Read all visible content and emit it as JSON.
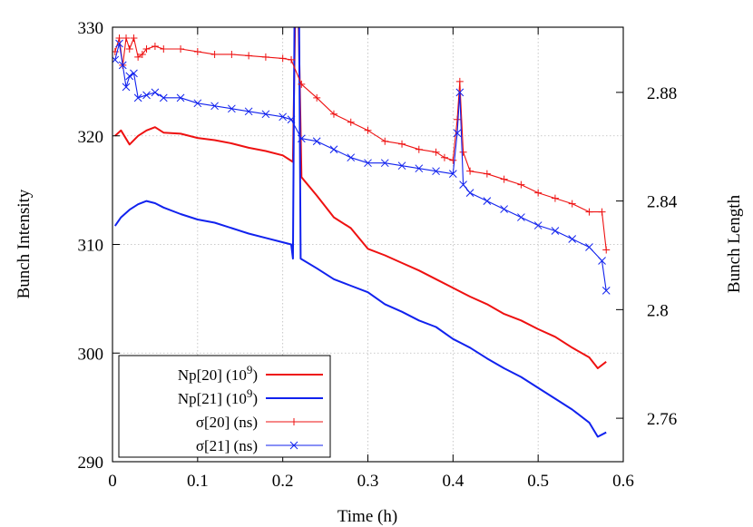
{
  "chart_data": {
    "type": "line",
    "xlabel": "Time (h)",
    "ylabel": "Bunch Intensity",
    "y2label": "Bunch Length",
    "xlim": [
      0,
      0.6
    ],
    "ylim": [
      290,
      330
    ],
    "y2lim": [
      2.744,
      2.904
    ],
    "xticks": [
      "0",
      "0.1",
      "0.2",
      "0.3",
      "0.4",
      "0.5",
      "0.6"
    ],
    "yticks": [
      "290",
      "300",
      "310",
      "320",
      "330"
    ],
    "y2ticks": [
      "2.76",
      "2.8",
      "2.84",
      "2.88"
    ],
    "grid": true,
    "legend_position": "bottom-left",
    "series": [
      {
        "name": "Np[20] (10",
        "name_superscript": "9",
        "name_suffix": ")",
        "axis": "left",
        "color": "#ee1111",
        "marker": "none",
        "points": [
          [
            0.003,
            320.0
          ],
          [
            0.01,
            320.5
          ],
          [
            0.02,
            319.2
          ],
          [
            0.03,
            320.0
          ],
          [
            0.04,
            320.5
          ],
          [
            0.05,
            320.8
          ],
          [
            0.06,
            320.3
          ],
          [
            0.08,
            320.2
          ],
          [
            0.1,
            319.8
          ],
          [
            0.12,
            319.6
          ],
          [
            0.14,
            319.3
          ],
          [
            0.16,
            318.9
          ],
          [
            0.18,
            318.6
          ],
          [
            0.2,
            318.2
          ],
          [
            0.212,
            317.6
          ],
          [
            0.215,
            333.0
          ],
          [
            0.218,
            333.0
          ],
          [
            0.222,
            316.2
          ],
          [
            0.24,
            314.5
          ],
          [
            0.26,
            312.5
          ],
          [
            0.28,
            311.5
          ],
          [
            0.3,
            309.6
          ],
          [
            0.32,
            309.0
          ],
          [
            0.34,
            308.3
          ],
          [
            0.36,
            307.6
          ],
          [
            0.38,
            306.8
          ],
          [
            0.4,
            306.0
          ],
          [
            0.42,
            305.2
          ],
          [
            0.44,
            304.5
          ],
          [
            0.46,
            303.6
          ],
          [
            0.48,
            303.0
          ],
          [
            0.5,
            302.2
          ],
          [
            0.52,
            301.5
          ],
          [
            0.54,
            300.5
          ],
          [
            0.56,
            299.6
          ],
          [
            0.57,
            298.6
          ],
          [
            0.58,
            299.2
          ]
        ]
      },
      {
        "name": "Np[21] (10",
        "name_superscript": "9",
        "name_suffix": ")",
        "axis": "left",
        "color": "#1122ee",
        "marker": "none",
        "points": [
          [
            0.003,
            311.7
          ],
          [
            0.01,
            312.5
          ],
          [
            0.02,
            313.2
          ],
          [
            0.03,
            313.7
          ],
          [
            0.04,
            314.0
          ],
          [
            0.05,
            313.8
          ],
          [
            0.06,
            313.4
          ],
          [
            0.08,
            312.8
          ],
          [
            0.1,
            312.3
          ],
          [
            0.12,
            312.0
          ],
          [
            0.14,
            311.5
          ],
          [
            0.16,
            311.0
          ],
          [
            0.18,
            310.6
          ],
          [
            0.2,
            310.2
          ],
          [
            0.21,
            310.0
          ],
          [
            0.212,
            308.7
          ],
          [
            0.214,
            333.0
          ],
          [
            0.219,
            333.0
          ],
          [
            0.221,
            308.7
          ],
          [
            0.24,
            307.8
          ],
          [
            0.26,
            306.8
          ],
          [
            0.28,
            306.2
          ],
          [
            0.3,
            305.6
          ],
          [
            0.32,
            304.5
          ],
          [
            0.34,
            303.8
          ],
          [
            0.36,
            303.0
          ],
          [
            0.38,
            302.4
          ],
          [
            0.4,
            301.3
          ],
          [
            0.42,
            300.5
          ],
          [
            0.44,
            299.5
          ],
          [
            0.46,
            298.6
          ],
          [
            0.48,
            297.8
          ],
          [
            0.5,
            296.8
          ],
          [
            0.52,
            295.8
          ],
          [
            0.54,
            294.8
          ],
          [
            0.56,
            293.6
          ],
          [
            0.57,
            292.3
          ],
          [
            0.58,
            292.7
          ]
        ]
      },
      {
        "name": "σ[20] (ns)",
        "axis": "right",
        "color": "#ee1111",
        "marker": "+",
        "points": [
          [
            0.003,
            2.895
          ],
          [
            0.008,
            2.9
          ],
          [
            0.012,
            2.89
          ],
          [
            0.016,
            2.9
          ],
          [
            0.02,
            2.896
          ],
          [
            0.025,
            2.9
          ],
          [
            0.03,
            2.893
          ],
          [
            0.035,
            2.894
          ],
          [
            0.04,
            2.896
          ],
          [
            0.05,
            2.897
          ],
          [
            0.06,
            2.896
          ],
          [
            0.08,
            2.896
          ],
          [
            0.1,
            2.895
          ],
          [
            0.12,
            2.894
          ],
          [
            0.14,
            2.894
          ],
          [
            0.16,
            2.8935
          ],
          [
            0.18,
            2.893
          ],
          [
            0.2,
            2.8925
          ],
          [
            0.21,
            2.892
          ],
          [
            0.222,
            2.883
          ],
          [
            0.24,
            2.878
          ],
          [
            0.26,
            2.872
          ],
          [
            0.28,
            2.869
          ],
          [
            0.3,
            2.866
          ],
          [
            0.32,
            2.862
          ],
          [
            0.34,
            2.861
          ],
          [
            0.36,
            2.859
          ],
          [
            0.38,
            2.858
          ],
          [
            0.39,
            2.856
          ],
          [
            0.4,
            2.855
          ],
          [
            0.405,
            2.87
          ],
          [
            0.408,
            2.884
          ],
          [
            0.412,
            2.858
          ],
          [
            0.42,
            2.851
          ],
          [
            0.44,
            2.85
          ],
          [
            0.46,
            2.848
          ],
          [
            0.48,
            2.846
          ],
          [
            0.5,
            2.843
          ],
          [
            0.52,
            2.841
          ],
          [
            0.54,
            2.839
          ],
          [
            0.56,
            2.836
          ],
          [
            0.575,
            2.836
          ],
          [
            0.58,
            2.822
          ]
        ]
      },
      {
        "name": "σ[21] (ns)",
        "axis": "right",
        "color": "#1122ee",
        "marker": "x",
        "points": [
          [
            0.003,
            2.892
          ],
          [
            0.008,
            2.898
          ],
          [
            0.012,
            2.89
          ],
          [
            0.016,
            2.882
          ],
          [
            0.02,
            2.886
          ],
          [
            0.025,
            2.887
          ],
          [
            0.03,
            2.878
          ],
          [
            0.04,
            2.879
          ],
          [
            0.05,
            2.88
          ],
          [
            0.06,
            2.878
          ],
          [
            0.08,
            2.878
          ],
          [
            0.1,
            2.876
          ],
          [
            0.12,
            2.875
          ],
          [
            0.14,
            2.874
          ],
          [
            0.16,
            2.873
          ],
          [
            0.18,
            2.872
          ],
          [
            0.2,
            2.871
          ],
          [
            0.21,
            2.87
          ],
          [
            0.222,
            2.863
          ],
          [
            0.24,
            2.862
          ],
          [
            0.26,
            2.859
          ],
          [
            0.28,
            2.856
          ],
          [
            0.3,
            2.854
          ],
          [
            0.32,
            2.854
          ],
          [
            0.34,
            2.853
          ],
          [
            0.36,
            2.852
          ],
          [
            0.38,
            2.851
          ],
          [
            0.4,
            2.85
          ],
          [
            0.405,
            2.865
          ],
          [
            0.408,
            2.88
          ],
          [
            0.412,
            2.846
          ],
          [
            0.42,
            2.843
          ],
          [
            0.44,
            2.84
          ],
          [
            0.46,
            2.837
          ],
          [
            0.48,
            2.834
          ],
          [
            0.5,
            2.831
          ],
          [
            0.52,
            2.829
          ],
          [
            0.54,
            2.826
          ],
          [
            0.56,
            2.823
          ],
          [
            0.575,
            2.818
          ],
          [
            0.58,
            2.807
          ]
        ]
      }
    ]
  }
}
